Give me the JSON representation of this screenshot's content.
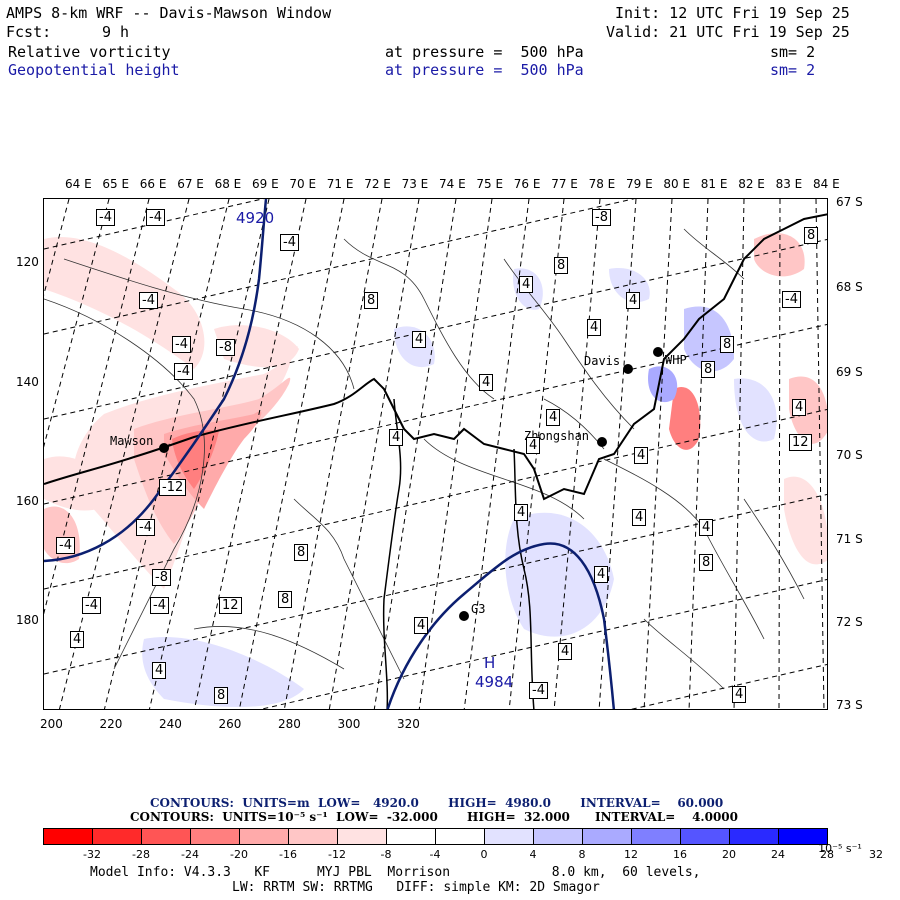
{
  "header": {
    "title": "AMPS 8-km WRF -- Davis-Mawson Window",
    "forecast_label": "Fcst:",
    "forecast_value": "9 h",
    "init": "Init: 12 UTC Fri 19 Sep 25",
    "valid": "Valid: 21 UTC Fri 19 Sep 25",
    "field1_name": "Relative vorticity",
    "field1_level": "at pressure =  500 hPa",
    "field1_smooth": "sm= 2",
    "field2_name": "Geopotential height",
    "field2_level": "at pressure =  500 hPa",
    "field2_smooth": "sm= 2",
    "color_text": "#000000",
    "color_field2": "#1a1aa6"
  },
  "map": {
    "top_axis_labels": [
      "64 E",
      "65 E",
      "66 E",
      "67 E",
      "68 E",
      "69 E",
      "70 E",
      "71 E",
      "72 E",
      "73 E",
      "74 E",
      "75 E",
      "76 E",
      "77 E",
      "78 E",
      "79 E",
      "80 E",
      "81 E",
      "82 E",
      "83 E",
      "84 E"
    ],
    "right_axis_labels": [
      "67 S",
      "68 S",
      "69 S",
      "70 S",
      "71 S",
      "72 S",
      "73 S"
    ],
    "left_axis_labels": [
      "120",
      "140",
      "160",
      "180"
    ],
    "bottom_axis_labels": [
      "200",
      "220",
      "240",
      "260",
      "280",
      "300",
      "320"
    ],
    "stations": [
      "Mawson",
      "Davis",
      "WHP",
      "Zhongshan",
      "G3"
    ],
    "high_marker": "H",
    "high_value": "4984",
    "height_contour_label": "4920",
    "vorticity_labels": [
      "-4",
      "-4",
      "-4",
      "-4",
      "-4",
      "-8",
      "-4",
      "-12",
      "-4",
      "-4",
      "-8",
      "-4",
      "-4",
      "4",
      "4",
      "8",
      "8",
      "4",
      "4",
      "4",
      "4",
      "8",
      "4",
      "4",
      "8",
      "8",
      "4",
      "4",
      "4",
      "4",
      "8",
      "12",
      "8",
      "4",
      "4",
      "-4",
      "-8",
      "4",
      "12",
      "8",
      "8",
      "4",
      "4",
      "4",
      "-4",
      "4"
    ]
  },
  "contour_info": {
    "line1": "CONTOURS:  UNITS=m  LOW=   4920.0       HIGH=  4980.0       INTERVAL=    60.000",
    "line2": "CONTOURS:  UNITS=10⁻⁵ s⁻¹  LOW=  -32.000       HIGH=  32.000      INTERVAL=    4.0000"
  },
  "legend": {
    "colors": [
      "#ff0000",
      "#ff2a2a",
      "#ff5555",
      "#ff7f7f",
      "#ffaaaa",
      "#ffc6c6",
      "#ffe2e2",
      "#ffffff",
      "#ffffff",
      "#e2e2ff",
      "#c6c6ff",
      "#aaaaff",
      "#7f7fff",
      "#5555ff",
      "#2a2aff",
      "#0000ff"
    ],
    "ticks": [
      "-32",
      "-28",
      "-24",
      "-20",
      "-16",
      "-12",
      "-8",
      "-4",
      "0",
      "4",
      "8",
      "12",
      "16",
      "20",
      "24",
      "28",
      "32"
    ],
    "units": "10⁻⁵ s⁻¹"
  },
  "footer": {
    "line1": "Model Info: V4.3.3   KF      MYJ PBL  Morrison             8.0 km,  60 levels,",
    "line2": "LW: RRTM SW: RRTMG   DIFF: simple KM: 2D Smagor"
  }
}
